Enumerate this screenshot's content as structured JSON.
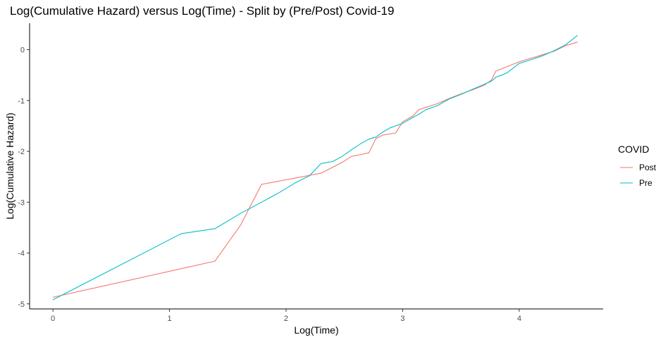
{
  "chart_data": {
    "type": "line",
    "title": "Log(Cumulative Hazard) versus Log(Time) - Split by (Pre/Post) Covid-19",
    "xlabel": "Log(Time)",
    "ylabel": "Log(Cumulative Hazard)",
    "xlim": [
      -0.2,
      4.72
    ],
    "ylim": [
      -5.1,
      0.52
    ],
    "xticks": [
      0,
      1,
      2,
      3,
      4
    ],
    "yticks": [
      -5,
      -4,
      -3,
      -2,
      -1,
      0
    ],
    "grid": false,
    "legend": {
      "title": "COVID",
      "position": "right"
    },
    "series": [
      {
        "name": "Post",
        "color": "#F8766D",
        "x": [
          0.0,
          1.39,
          1.61,
          1.79,
          2.3,
          2.48,
          2.56,
          2.71,
          2.77,
          2.83,
          2.94,
          3.0,
          3.09,
          3.14,
          3.3,
          3.4,
          3.5,
          3.6,
          3.7,
          3.76,
          3.8,
          3.9,
          4.0,
          4.1,
          4.2,
          4.3,
          4.4,
          4.5
        ],
        "y": [
          -4.87,
          -4.16,
          -3.45,
          -2.65,
          -2.43,
          -2.22,
          -2.1,
          -2.03,
          -1.75,
          -1.68,
          -1.64,
          -1.42,
          -1.3,
          -1.18,
          -1.06,
          -0.96,
          -0.87,
          -0.79,
          -0.7,
          -0.6,
          -0.42,
          -0.33,
          -0.24,
          -0.17,
          -0.1,
          -0.03,
          0.08,
          0.15
        ]
      },
      {
        "name": "Pre",
        "color": "#00BFC4",
        "x": [
          0.0,
          1.1,
          1.39,
          1.61,
          1.79,
          1.95,
          2.08,
          2.2,
          2.3,
          2.4,
          2.48,
          2.56,
          2.64,
          2.71,
          2.77,
          2.83,
          2.89,
          2.94,
          3.0,
          3.09,
          3.14,
          3.2,
          3.3,
          3.4,
          3.5,
          3.6,
          3.7,
          3.76,
          3.8,
          3.85,
          3.9,
          4.0,
          4.1,
          4.2,
          4.3,
          4.4,
          4.5
        ],
        "y": [
          -4.92,
          -3.62,
          -3.52,
          -3.22,
          -3.0,
          -2.8,
          -2.62,
          -2.48,
          -2.24,
          -2.2,
          -2.1,
          -1.97,
          -1.85,
          -1.76,
          -1.72,
          -1.62,
          -1.54,
          -1.5,
          -1.45,
          -1.33,
          -1.27,
          -1.18,
          -1.1,
          -0.97,
          -0.88,
          -0.78,
          -0.68,
          -0.62,
          -0.54,
          -0.5,
          -0.45,
          -0.27,
          -0.2,
          -0.12,
          -0.02,
          0.1,
          0.28
        ]
      }
    ]
  }
}
